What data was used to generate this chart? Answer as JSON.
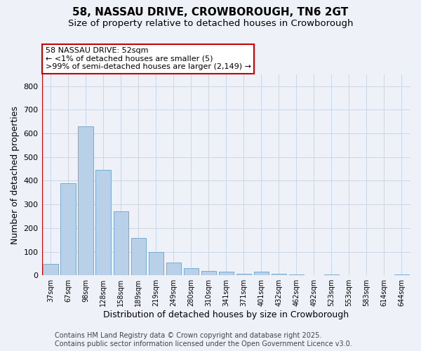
{
  "title_line1": "58, NASSAU DRIVE, CROWBOROUGH, TN6 2GT",
  "title_line2": "Size of property relative to detached houses in Crowborough",
  "xlabel": "Distribution of detached houses by size in Crowborough",
  "ylabel": "Number of detached properties",
  "categories": [
    "37sqm",
    "67sqm",
    "98sqm",
    "128sqm",
    "158sqm",
    "189sqm",
    "219sqm",
    "249sqm",
    "280sqm",
    "310sqm",
    "341sqm",
    "371sqm",
    "401sqm",
    "432sqm",
    "462sqm",
    "492sqm",
    "523sqm",
    "553sqm",
    "583sqm",
    "614sqm",
    "644sqm"
  ],
  "values": [
    48,
    390,
    630,
    445,
    270,
    158,
    100,
    55,
    30,
    18,
    15,
    8,
    15,
    8,
    5,
    0,
    5,
    0,
    0,
    0,
    5
  ],
  "bar_color": "#b8d0e8",
  "bar_edgecolor": "#7aaad0",
  "red_line_x": 0,
  "red_line_color": "#cc0000",
  "annotation_text": "58 NASSAU DRIVE: 52sqm\n← <1% of detached houses are smaller (5)\n>99% of semi-detached houses are larger (2,149) →",
  "annotation_box_color": "#ffffff",
  "annotation_box_edgecolor": "#cc0000",
  "ylim": [
    0,
    850
  ],
  "yticks": [
    0,
    100,
    200,
    300,
    400,
    500,
    600,
    700,
    800
  ],
  "footer_line1": "Contains HM Land Registry data © Crown copyright and database right 2025.",
  "footer_line2": "Contains public sector information licensed under the Open Government Licence v3.0.",
  "bg_color": "#eef2f8",
  "grid_color": "#c8d8e8",
  "title_fontsize": 11,
  "subtitle_fontsize": 9.5,
  "annotation_fontsize": 8,
  "footer_fontsize": 7,
  "xlabel_fontsize": 9,
  "ylabel_fontsize": 9,
  "ytick_fontsize": 8,
  "xtick_fontsize": 7
}
